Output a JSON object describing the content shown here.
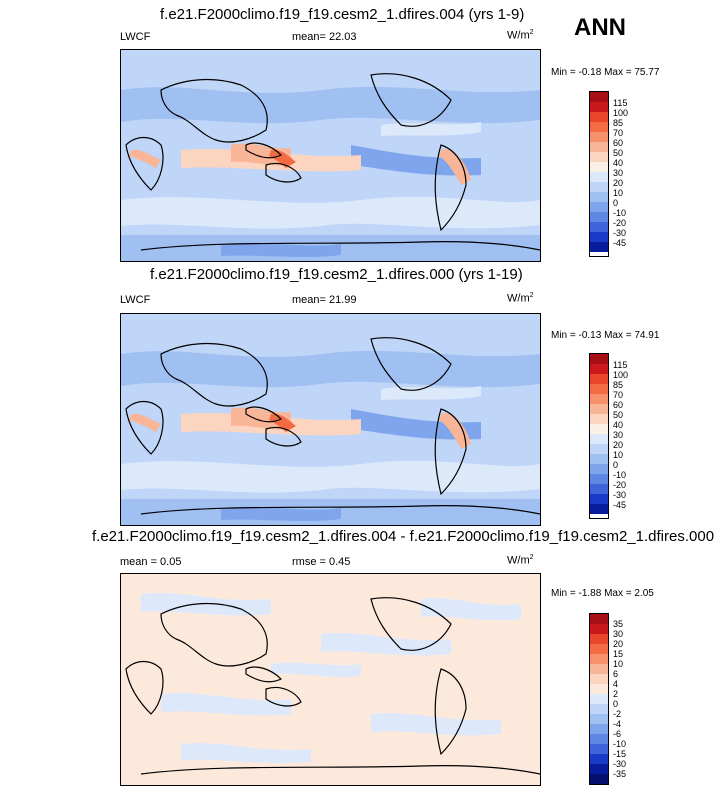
{
  "season": "ANN",
  "variable": "LWCF",
  "panels": [
    {
      "title": "f.e21.F2000climo.f19_f19.cesm2_1.dfires.004 (yrs 1-9)",
      "left_label": "LWCF",
      "center_label": "mean=  22.03",
      "units": "W/m²",
      "min_max": "Min =  -0.18 Max =  75.77",
      "levels": [
        "115",
        "100",
        "85",
        "70",
        "60",
        "50",
        "40",
        "30",
        "20",
        "10",
        "0",
        "-10",
        "-20",
        "-30",
        "-45"
      ]
    },
    {
      "title": "f.e21.F2000climo.f19_f19.cesm2_1.dfires.000 (yrs 1-19)",
      "left_label": "LWCF",
      "center_label": "mean=  21.99",
      "units": "W/m²",
      "min_max": "Min =  -0.13 Max =  74.91",
      "levels": [
        "115",
        "100",
        "85",
        "70",
        "60",
        "50",
        "40",
        "30",
        "20",
        "10",
        "0",
        "-10",
        "-20",
        "-30",
        "-45"
      ]
    },
    {
      "title": "f.e21.F2000climo.f19_f19.cesm2_1.dfires.004 - f.e21.F2000climo.f19_f19.cesm2_1.dfires.000",
      "left_label": "mean =   0.05",
      "center_label": "rmse =   0.45",
      "units": "W/m²",
      "min_max": "Min =  -1.88 Max =   2.05",
      "levels": [
        "35",
        "30",
        "20",
        "15",
        "10",
        "6",
        "4",
        "2",
        "0",
        "-2",
        "-4",
        "-6",
        "-10",
        "-15",
        "-30",
        "-35"
      ]
    }
  ],
  "colors": {
    "abs_scale": [
      "#a50f15",
      "#cb181d",
      "#e8452a",
      "#f26b43",
      "#f6916b",
      "#f9b597",
      "#fcd5c0",
      "#fbf0e6",
      "#dce9fb",
      "#c0d6f8",
      "#a0c0f2",
      "#7fa6ec",
      "#5f87e4",
      "#3f64da",
      "#1a3bc8",
      "#0a1c9e"
    ],
    "diff_scale": [
      "#a50f15",
      "#cb181d",
      "#e8452a",
      "#f26b43",
      "#f6916b",
      "#f9b597",
      "#fcd5c0",
      "#fde9dc",
      "#dde9fb",
      "#c0d6f8",
      "#a0c0f2",
      "#7fa6ec",
      "#5f87e4",
      "#3f64da",
      "#1a3bc8",
      "#0a1c9e",
      "#06106f"
    ]
  }
}
